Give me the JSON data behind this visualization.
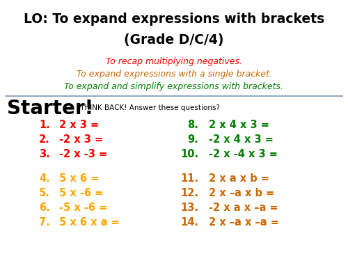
{
  "bg_color": "#ffffff",
  "title_line1": "LO: To expand expressions with brackets",
  "title_line2": "(Grade D/C/4)",
  "title_color": "#000000",
  "objectives": [
    "To recap multiplying negatives.",
    "To expand expressions with a single bracket.",
    "To expand and simplify expressions with brackets."
  ],
  "obj_colors": [
    "#ff0000",
    "#cc6600",
    "#008000"
  ],
  "starter_big": "Starter!",
  "starter_small": " THINK BACK! Answer these questions?",
  "divider_color": "#7799bb",
  "left_questions": [
    {
      "num": "1.",
      "text": "2 x 3 =",
      "color": "#ff0000"
    },
    {
      "num": "2.",
      "text": "-2 x 3 =",
      "color": "#ff0000"
    },
    {
      "num": "3.",
      "text": "-2 x -3 =",
      "color": "#ff0000"
    },
    {
      "num": "4.",
      "text": "5 x 6 =",
      "color": "#ffa500"
    },
    {
      "num": "5.",
      "text": "5 x -6 =",
      "color": "#ffa500"
    },
    {
      "num": "6.",
      "text": "-5 x -6 =",
      "color": "#ffa500"
    },
    {
      "num": "7.",
      "text": "5 x 6 x a =",
      "color": "#ffa500"
    }
  ],
  "right_questions": [
    {
      "num": "8.",
      "text": "2 x 4 x 3 =",
      "color": "#008000"
    },
    {
      "num": "9.",
      "text": "-2 x 4 x 3 =",
      "color": "#008000"
    },
    {
      "num": "10.",
      "text": "-2 x -4 x 3 =",
      "color": "#008000"
    },
    {
      "num": "11.",
      "text": "2 x a x b =",
      "color": "#cc6600"
    },
    {
      "num": "12.",
      "text": "2 x –a x b =",
      "color": "#cc6600"
    },
    {
      "num": "13.",
      "text": "-2 x a x –a =",
      "color": "#cc6600"
    },
    {
      "num": "14.",
      "text": "2 x –a x –a =",
      "color": "#cc6600"
    }
  ]
}
